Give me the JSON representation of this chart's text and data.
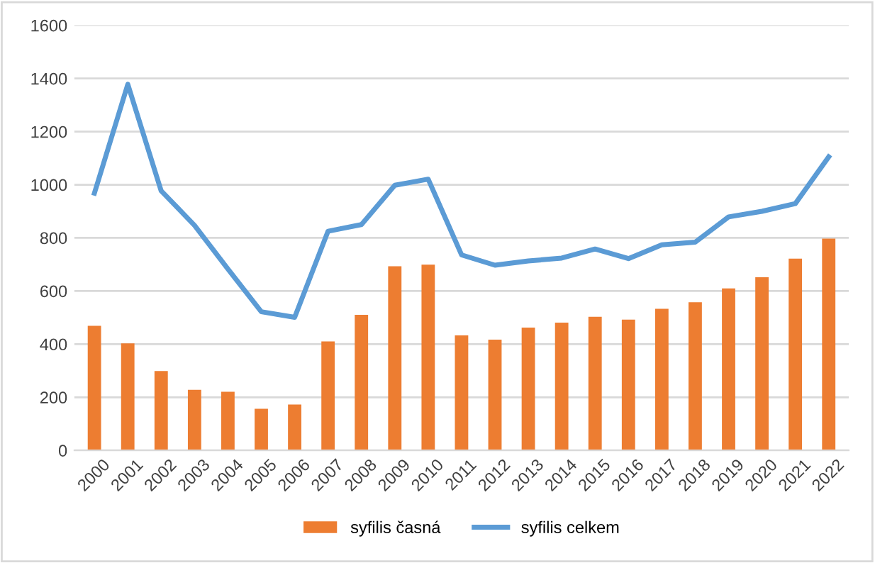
{
  "chart_data": {
    "type": "bar",
    "categories": [
      "2000",
      "2001",
      "2002",
      "2003",
      "2004",
      "2005",
      "2006",
      "2007",
      "2008",
      "2009",
      "2010",
      "2011",
      "2012",
      "2013",
      "2014",
      "2015",
      "2016",
      "2017",
      "2018",
      "2019",
      "2020",
      "2021",
      "2022"
    ],
    "series": [
      {
        "name": "syfilis časná",
        "color": "#ed7d31",
        "values": [
          469,
          403,
          299,
          228,
          221,
          157,
          173,
          410,
          510,
          693,
          699,
          433,
          417,
          462,
          481,
          503,
          492,
          533,
          558,
          610,
          652,
          722,
          797
        ]
      },
      {
        "name": "syfilis celkem",
        "type": "line",
        "color": "#5b9bd5",
        "values": [
          968,
          1378,
          977,
          847,
          683,
          522,
          501,
          825,
          850,
          998,
          1021,
          736,
          697,
          713,
          724,
          758,
          722,
          774,
          784,
          879,
          900,
          929,
          1105
        ]
      }
    ],
    "ylim": [
      0,
      1600
    ],
    "yticks": [
      0,
      200,
      400,
      600,
      800,
      1000,
      1200,
      1400,
      1600
    ],
    "grid": "y",
    "legend": "bottom",
    "marker": "none",
    "line_style": "solid"
  }
}
